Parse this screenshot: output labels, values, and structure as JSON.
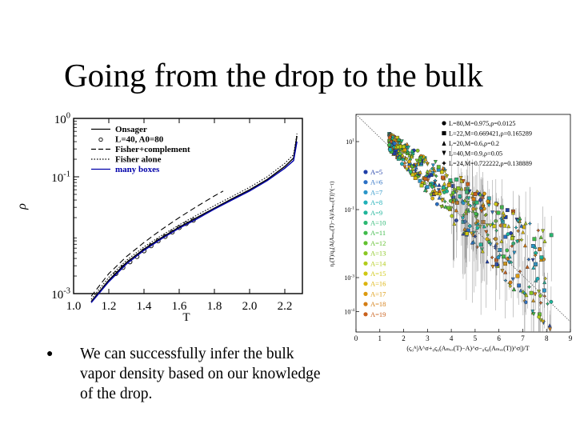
{
  "slide": {
    "title": "Going from the drop to the bulk",
    "bullet": "We can successfully infer the bulk vapor density based on our knowledge of the drop."
  },
  "chart_data": [
    {
      "type": "line",
      "xlabel": "T",
      "ylabel": "ρ",
      "xlim": [
        1.0,
        2.3
      ],
      "ylim_log10": [
        -3,
        0
      ],
      "x_ticks": [
        "1.0",
        "1.2",
        "1.4",
        "1.6",
        "1.8",
        "2.0",
        "2.2"
      ],
      "y_ticks": [
        {
          "base": "10",
          "exp": "0",
          "log10": 0
        },
        {
          "base": "10",
          "exp": "-1",
          "log10": -1
        },
        {
          "base": "10",
          "exp": "-3",
          "log10": -3
        }
      ],
      "legend_position": "top-left",
      "series": [
        {
          "name": "Onsager",
          "style": "solid",
          "color": "#000000",
          "x": [
            1.1,
            1.2,
            1.3,
            1.4,
            1.5,
            1.6,
            1.7,
            1.8,
            1.9,
            2.0,
            2.1,
            2.2,
            2.25,
            2.269
          ],
          "y": [
            0.00073,
            0.0017,
            0.0034,
            0.0058,
            0.0091,
            0.0138,
            0.02,
            0.029,
            0.042,
            0.06,
            0.09,
            0.15,
            0.21,
            0.5
          ]
        },
        {
          "name": "L=40, A0=80",
          "style": "circles",
          "color": "#000000",
          "x": [
            1.24,
            1.28,
            1.32,
            1.36,
            1.4,
            1.44,
            1.48,
            1.52,
            1.56,
            1.6,
            1.64,
            1.68
          ],
          "y": [
            0.0022,
            0.0028,
            0.0035,
            0.0043,
            0.0054,
            0.0066,
            0.008,
            0.0095,
            0.0113,
            0.0135,
            0.0158,
            0.018
          ]
        },
        {
          "name": "Fisher+complement",
          "style": "dashed",
          "color": "#000000",
          "x": [
            1.1,
            1.2,
            1.3,
            1.4,
            1.5,
            1.6,
            1.7,
            1.8,
            1.85
          ],
          "y": [
            0.0009,
            0.0022,
            0.0043,
            0.0075,
            0.0125,
            0.02,
            0.031,
            0.047,
            0.057
          ]
        },
        {
          "name": "Fisher alone",
          "style": "dotted",
          "color": "#000000",
          "x": [
            1.1,
            1.2,
            1.3,
            1.4,
            1.5,
            1.6,
            1.7,
            1.8,
            1.9,
            2.0,
            2.1,
            2.2,
            2.25,
            2.269
          ],
          "y": [
            0.0008,
            0.0019,
            0.0037,
            0.0063,
            0.0099,
            0.015,
            0.022,
            0.032,
            0.046,
            0.066,
            0.1,
            0.17,
            0.24,
            0.55
          ]
        },
        {
          "name": "many boxes",
          "style": "solid",
          "color": "#0000aa",
          "x": [
            1.1,
            1.2,
            1.3,
            1.4,
            1.5,
            1.6,
            1.7,
            1.8,
            1.9,
            2.0,
            2.1,
            2.2,
            2.25,
            2.269
          ],
          "y": [
            0.0007,
            0.0016,
            0.0032,
            0.0055,
            0.0087,
            0.0132,
            0.019,
            0.028,
            0.04,
            0.057,
            0.086,
            0.14,
            0.19,
            0.4
          ]
        }
      ]
    },
    {
      "type": "scatter",
      "xlim": [
        0,
        9
      ],
      "x_ticks": [
        "0",
        "1",
        "2",
        "3",
        "4",
        "5",
        "6",
        "7",
        "8",
        "9"
      ],
      "y_ticks": [
        {
          "base": "10",
          "exp": "1",
          "log10": 1
        },
        {
          "base": "10",
          "exp": "-1",
          "log10": -1
        },
        {
          "base": "10",
          "exp": "-3",
          "log10": -3
        },
        {
          "base": "10",
          "exp": "-4",
          "log10": -4
        }
      ],
      "xlabel": "(ς₀ᴬ|A^σ+₀ς₀(Aₘₐₓ(T)−A)^σ−₀ς₀(Aₘₐₓ(T))^σ|)/T",
      "ylabel": "ηₐ(T)/q₀[A(Aₘₐₓ(T)−A)/Aₘₐₓ(T)]^(−τ)",
      "system_legend": [
        {
          "marker": "circle",
          "label": "L=80,M=0.975,ρ=0.0125"
        },
        {
          "marker": "square",
          "label": "L=22,M=0.669421,ρ=0.165289"
        },
        {
          "marker": "triangle-up",
          "label": "L=20,M=0.6,ρ=0.2"
        },
        {
          "marker": "triangle-down",
          "label": "L=40,M=0.9,ρ=0.05"
        },
        {
          "marker": "star",
          "label": "L=24,M=0.722222,ρ=0.138889"
        }
      ],
      "size_legend": [
        {
          "label": "A=5",
          "color": "#1f3fa8"
        },
        {
          "label": "A=6",
          "color": "#2a6fc4"
        },
        {
          "label": "A=7",
          "color": "#2a95c8"
        },
        {
          "label": "A=8",
          "color": "#1fb0b8"
        },
        {
          "label": "A=9",
          "color": "#1fb59a"
        },
        {
          "label": "A=10",
          "color": "#2bb872"
        },
        {
          "label": "A=11",
          "color": "#3fbb4a"
        },
        {
          "label": "A=12",
          "color": "#62c12f"
        },
        {
          "label": "A=13",
          "color": "#8ac722"
        },
        {
          "label": "A=14",
          "color": "#b2cc1a"
        },
        {
          "label": "A=15",
          "color": "#cfc812"
        },
        {
          "label": "A=16",
          "color": "#dcb40e"
        },
        {
          "label": "A=17",
          "color": "#dc9a0e"
        },
        {
          "label": "A=18",
          "color": "#d47d14"
        },
        {
          "label": "A=19",
          "color": "#c9601c"
        }
      ],
      "guide_line": {
        "x": [
          0,
          9
        ],
        "log10_y": [
          1.8,
          -4.3
        ],
        "style": "dotted"
      }
    }
  ]
}
